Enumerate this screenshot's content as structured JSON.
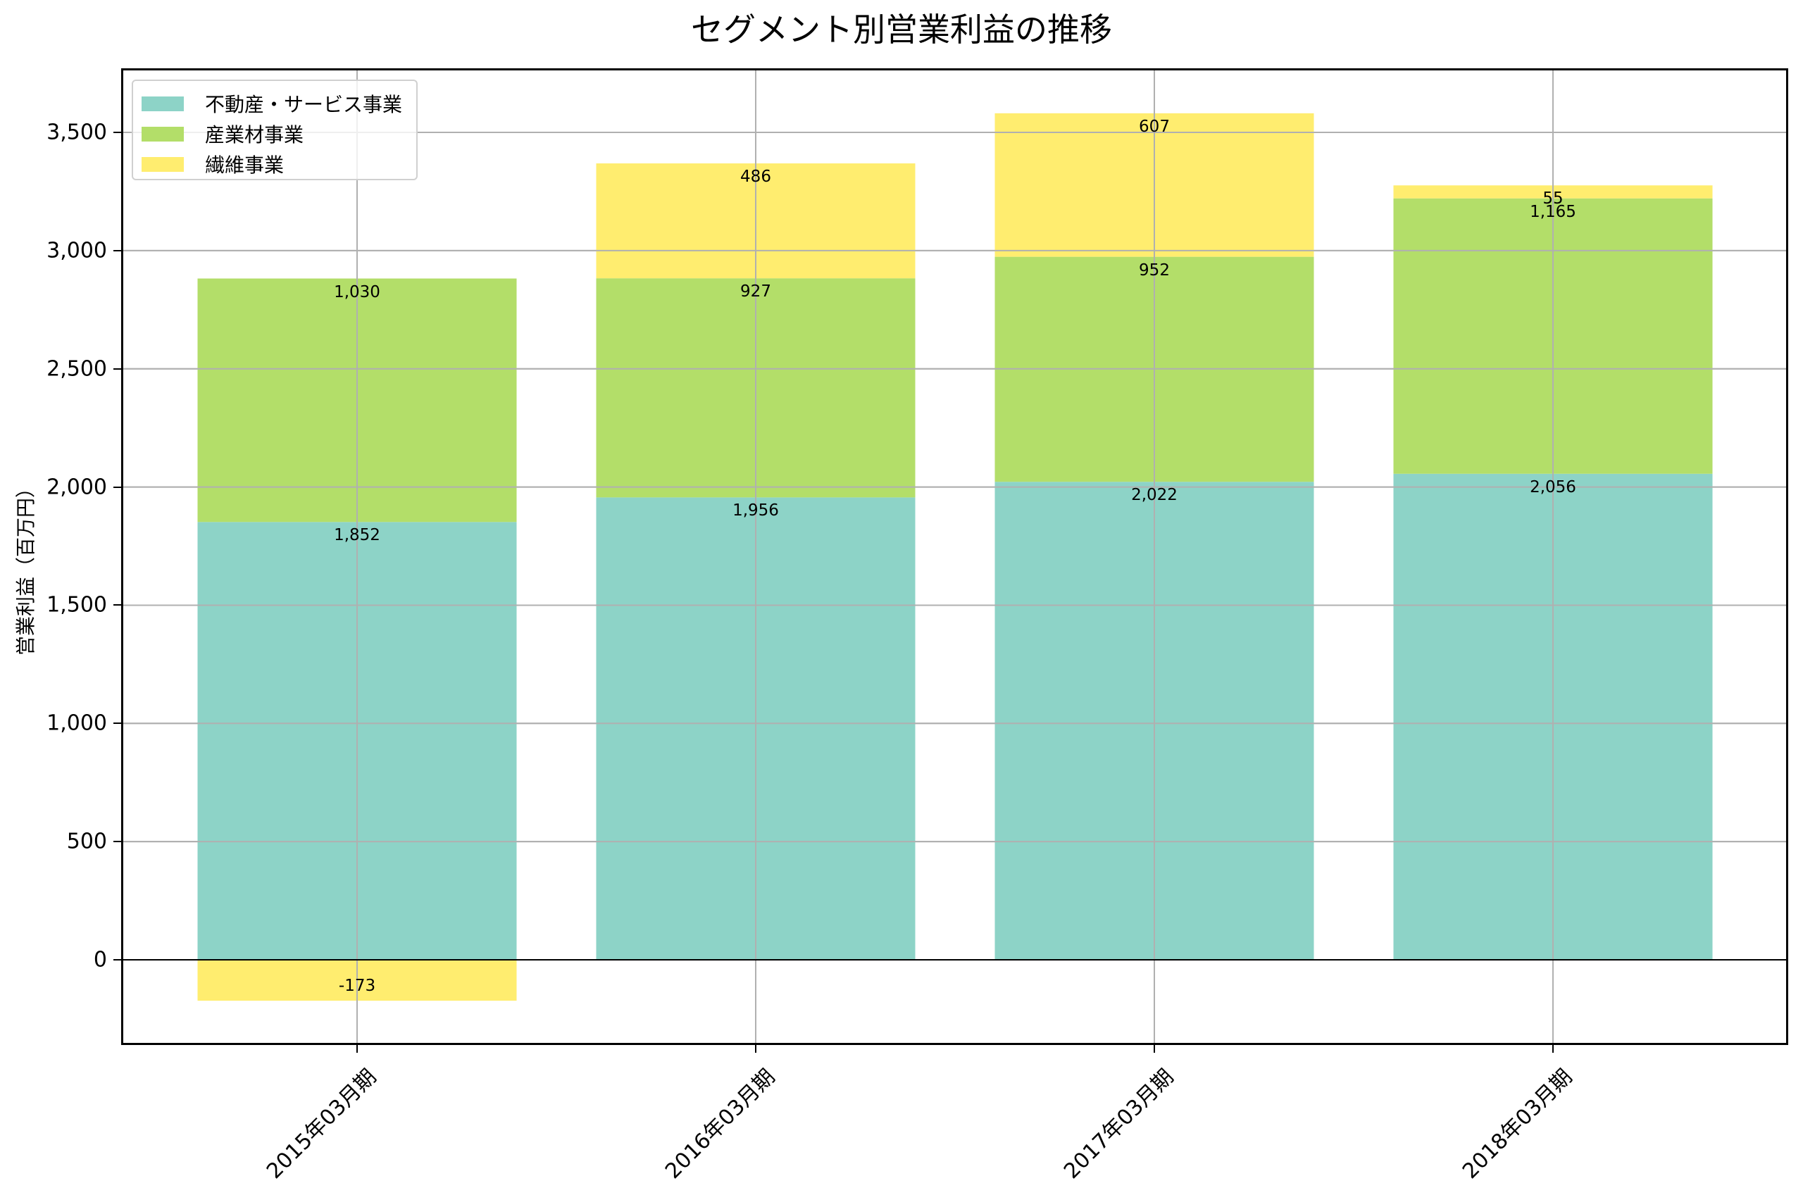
{
  "title": "セグメント別営業利益の推移",
  "y_axis_label": "営業利益（百万円）",
  "legend": [
    {
      "label": "不動産・サービス事業",
      "color": "#8DD3C7"
    },
    {
      "label": "産業材事業",
      "color": "#B3DE69"
    },
    {
      "label": "繊維事業",
      "color": "#FFED6F"
    }
  ],
  "y_ticks": [
    "0",
    "500",
    "1,000",
    "1,500",
    "2,000",
    "2,500",
    "3,000",
    "3,500"
  ],
  "x_ticks": [
    "2015年03月期",
    "2016年03月期",
    "2017年03月期",
    "2018年03月期"
  ],
  "chart_data": {
    "type": "bar",
    "stacked": true,
    "title": "セグメント別営業利益の推移",
    "xlabel": "",
    "ylabel": "営業利益（百万円）",
    "categories": [
      "2015年03月期",
      "2016年03月期",
      "2017年03月期",
      "2018年03月期"
    ],
    "series": [
      {
        "name": "不動産・サービス事業",
        "color": "#8DD3C7",
        "values": [
          1852,
          1956,
          2022,
          2056
        ]
      },
      {
        "name": "産業材事業",
        "color": "#B3DE69",
        "values": [
          1030,
          927,
          952,
          1165
        ]
      },
      {
        "name": "繊維事業",
        "color": "#FFED6F",
        "values": [
          -173,
          486,
          607,
          55
        ]
      }
    ],
    "data_labels": [
      [
        "1,852",
        "1,956",
        "2,022",
        "2,056"
      ],
      [
        "1,030",
        "927",
        "952",
        "1,165"
      ],
      [
        "-173",
        "486",
        "607",
        "55"
      ]
    ],
    "ylim": [
      -360,
      3770
    ],
    "yticks": [
      0,
      500,
      1000,
      1500,
      2000,
      2500,
      3000,
      3500
    ],
    "grid": true,
    "legend_position": "upper left"
  }
}
